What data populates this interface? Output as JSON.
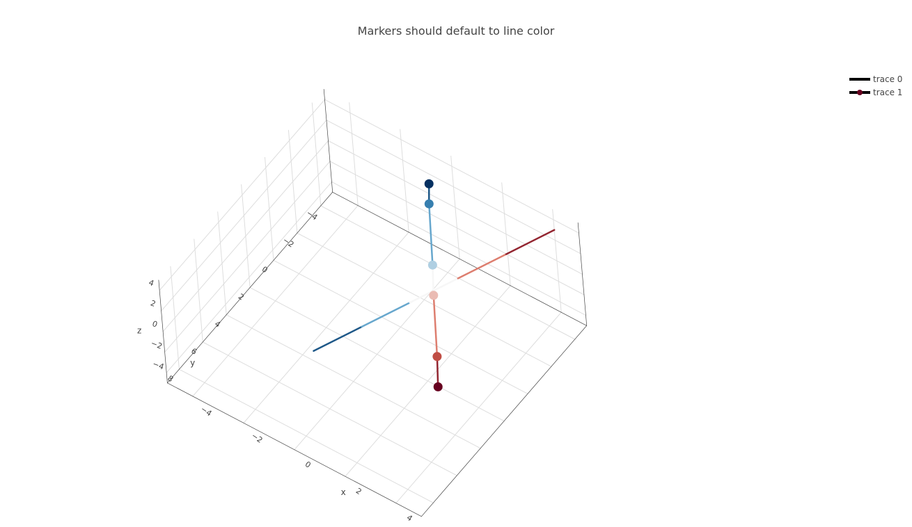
{
  "chart_data": {
    "type": "scatter3d",
    "title": "Markers should default to line color",
    "axes": {
      "x": {
        "title": "x",
        "ticks": [
          "−4",
          "−2",
          "0",
          "2",
          "4"
        ],
        "range": [
          -5,
          5
        ]
      },
      "y": {
        "title": "y",
        "ticks": [
          "−4",
          "−2",
          "0",
          "2",
          "4",
          "6",
          "8"
        ],
        "range": [
          -5,
          9
        ]
      },
      "z": {
        "title": "z",
        "ticks": [
          "−4",
          "−2",
          "0",
          "2",
          "4"
        ],
        "range": [
          -5,
          5
        ]
      }
    },
    "grid": true,
    "legend": {
      "position": "top-right"
    },
    "series": [
      {
        "name": "trace 0",
        "mode": "lines",
        "colorscale": "RdBu",
        "x": [
          -1,
          0,
          1,
          2,
          3,
          4
        ],
        "y": [
          5,
          3,
          1,
          -1,
          -3,
          -5
        ],
        "z": [
          -2,
          -1,
          0,
          1,
          2,
          3
        ]
      },
      {
        "name": "trace 1",
        "mode": "lines+markers",
        "colorscale": "RdBu",
        "x": [
          -1,
          0,
          1,
          2,
          3,
          4
        ],
        "y": [
          -5,
          -3,
          -1,
          1,
          3,
          5
        ],
        "z": [
          1,
          3,
          1,
          2,
          0,
          1
        ]
      }
    ]
  }
}
